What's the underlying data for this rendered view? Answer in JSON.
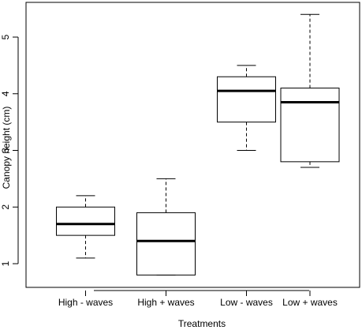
{
  "chart_data": {
    "type": "boxplot",
    "title": "",
    "xlabel": "Treatments",
    "ylabel": "Canopy height (cm)",
    "ylim": [
      0.6,
      5.6
    ],
    "yticks": [
      1,
      2,
      3,
      4,
      5
    ],
    "ytick_labels": [
      "1",
      "2",
      "3",
      "4",
      "5"
    ],
    "grid": false,
    "categories": [
      "High - waves",
      "High + waves",
      "Low - waves",
      "Low + waves"
    ],
    "boxes": [
      {
        "category": "High - waves",
        "whisker_low": 1.1,
        "q1": 1.5,
        "median": 1.7,
        "q3": 2.0,
        "whisker_high": 2.2
      },
      {
        "category": "High + waves",
        "whisker_low": 0.8,
        "q1": 0.8,
        "median": 1.4,
        "q3": 1.9,
        "whisker_high": 2.5
      },
      {
        "category": "Low - waves",
        "whisker_low": 3.0,
        "q1": 3.5,
        "median": 4.05,
        "q3": 4.3,
        "whisker_high": 4.5
      },
      {
        "category": "Low + waves",
        "whisker_low": 2.7,
        "q1": 2.8,
        "median": 3.85,
        "q3": 4.1,
        "whisker_high": 5.4
      }
    ],
    "colors": {
      "box_fill": "#ffffff",
      "stroke": "#000000"
    }
  }
}
